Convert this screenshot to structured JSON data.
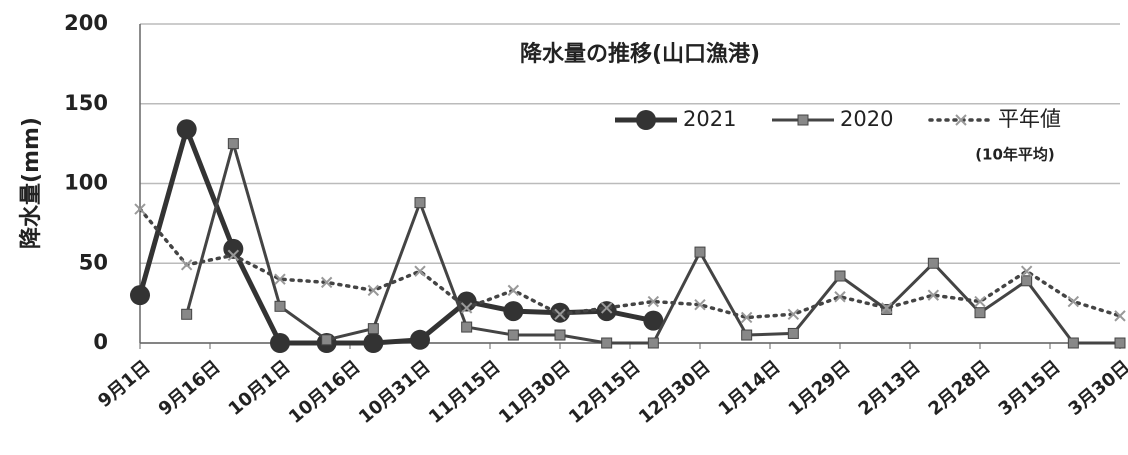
{
  "chart_data": {
    "type": "line",
    "title": "降水量の推移(山口漁港)",
    "y_label": "降水量(mm)",
    "legend_note": "(10年平均)",
    "x": [
      0,
      10,
      20,
      30,
      40,
      50,
      60,
      70,
      80,
      90,
      100,
      110,
      120,
      130,
      140,
      150,
      160,
      170,
      180,
      190,
      200,
      210
    ],
    "xlim": [
      0,
      210
    ],
    "xticks": [
      {
        "value": 0,
        "label": "9月1日"
      },
      {
        "value": 15,
        "label": "9月16日"
      },
      {
        "value": 30,
        "label": "10月1日"
      },
      {
        "value": 45,
        "label": "10月16日"
      },
      {
        "value": 60,
        "label": "10月31日"
      },
      {
        "value": 75,
        "label": "11月15日"
      },
      {
        "value": 90,
        "label": "11月30日"
      },
      {
        "value": 105,
        "label": "12月15日"
      },
      {
        "value": 120,
        "label": "12月30日"
      },
      {
        "value": 135,
        "label": "1月14日"
      },
      {
        "value": 150,
        "label": "1月29日"
      },
      {
        "value": 165,
        "label": "2月13日"
      },
      {
        "value": 180,
        "label": "2月28日"
      },
      {
        "value": 195,
        "label": "3月15日"
      },
      {
        "value": 210,
        "label": "3月30日"
      }
    ],
    "ylim": [
      0,
      200
    ],
    "yticks": [
      0,
      50,
      100,
      150,
      200
    ],
    "grid": true,
    "series": [
      {
        "name": "2021",
        "color": "#333333",
        "values": [
          30,
          134,
          59,
          0,
          0,
          0,
          2,
          26,
          20,
          19,
          20,
          14,
          null,
          null,
          null,
          null,
          null,
          null,
          null,
          null,
          null,
          null
        ]
      },
      {
        "name": "2020",
        "color": "#444444",
        "values": [
          null,
          18,
          125,
          23,
          2,
          9,
          88,
          10,
          5,
          5,
          0,
          0,
          57,
          5,
          6,
          42,
          21,
          50,
          19,
          39,
          0,
          0
        ]
      },
      {
        "name": "平年値",
        "color": "#444444",
        "values": [
          84,
          49,
          55,
          40,
          38,
          33,
          45,
          22,
          33,
          18,
          22,
          26,
          24,
          16,
          18,
          29,
          22,
          30,
          26,
          45,
          26,
          17
        ]
      }
    ]
  }
}
